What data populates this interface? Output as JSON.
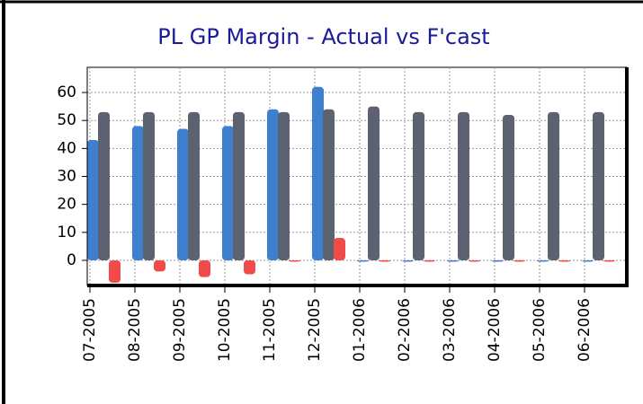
{
  "chart_data": {
    "type": "bar",
    "title": "PL GP Margin - Actual vs F'cast",
    "categories": [
      "07-2005",
      "08-2005",
      "09-2005",
      "10-2005",
      "11-2005",
      "12-2005",
      "01-2006",
      "02-2006",
      "03-2006",
      "04-2006",
      "05-2006",
      "06-2006"
    ],
    "series": [
      {
        "color": "#3f7fd0",
        "values": [
          43,
          48,
          47,
          48,
          54,
          62,
          0,
          0,
          0,
          0,
          0,
          0
        ]
      },
      {
        "color": "#5c6270",
        "values": [
          53,
          53,
          53,
          53,
          53,
          54,
          55,
          53,
          53,
          52,
          53,
          53
        ]
      },
      {
        "color": "#f04a4a",
        "values": [
          -8,
          -4,
          -6,
          -5,
          0,
          8,
          0,
          0,
          0,
          0,
          0,
          0
        ]
      }
    ],
    "ylim": [
      -9,
      69
    ],
    "yticks": [
      0,
      10,
      20,
      30,
      40,
      50,
      60
    ],
    "grid": true
  }
}
